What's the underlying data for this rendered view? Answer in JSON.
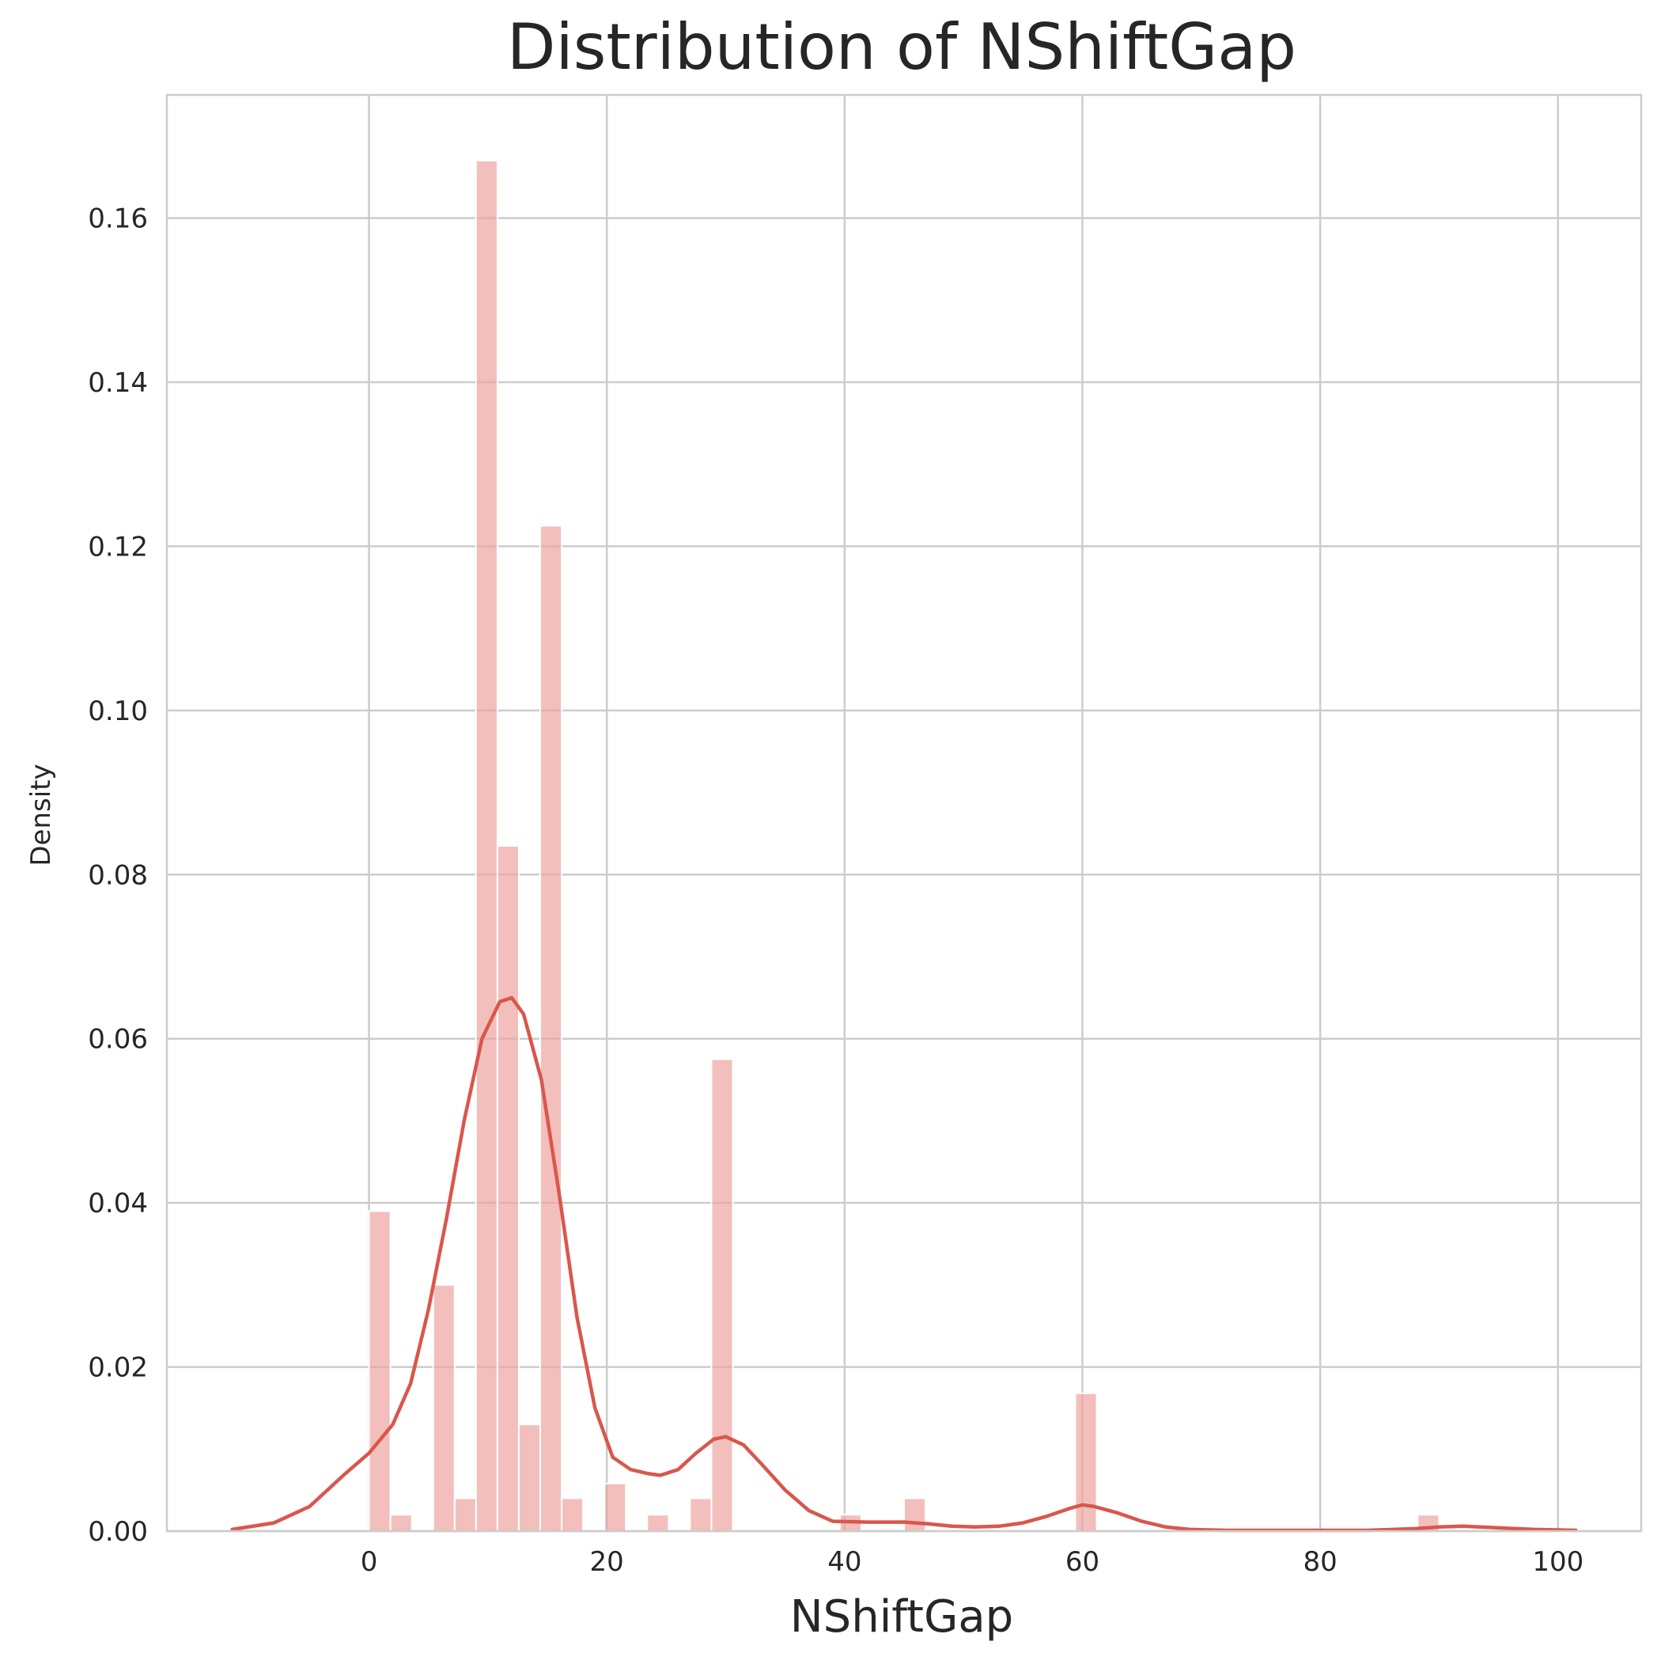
{
  "chart_data": {
    "type": "bar",
    "title": "Distribution of NShiftGap",
    "xlabel": "NShiftGap",
    "ylabel": "Density",
    "xlim": [
      -17,
      107
    ],
    "ylim": [
      0,
      0.175
    ],
    "xticks": [
      0,
      20,
      40,
      60,
      80,
      100
    ],
    "xtick_labels": [
      "0",
      "20",
      "40",
      "60",
      "80",
      "100"
    ],
    "yticks": [
      0.0,
      0.02,
      0.04,
      0.06,
      0.08,
      0.1,
      0.12,
      0.14,
      0.16
    ],
    "ytick_labels": [
      "0.00",
      "0.02",
      "0.04",
      "0.06",
      "0.08",
      "0.10",
      "0.12",
      "0.14",
      "0.16"
    ],
    "grid": true,
    "bin_width": 1.8,
    "histogram": {
      "name": "histogram",
      "bin_starts": [
        0,
        1.8,
        5.4,
        7.2,
        9.0,
        10.8,
        12.6,
        14.4,
        16.2,
        19.8,
        23.4,
        27.0,
        28.8,
        39.6,
        45.0,
        59.4,
        88.2
      ],
      "density": [
        0.039,
        0.002,
        0.03,
        0.004,
        0.167,
        0.0835,
        0.013,
        0.1225,
        0.004,
        0.0058,
        0.002,
        0.004,
        0.0575,
        0.002,
        0.004,
        0.0168,
        0.002
      ]
    },
    "kde": {
      "name": "kde",
      "x": [
        -11.5,
        -8,
        -5,
        -2,
        0,
        2,
        3.5,
        5,
        6.5,
        8,
        9.5,
        11,
        12,
        13,
        14.5,
        16,
        17.5,
        19,
        20.5,
        22,
        23.5,
        24.5,
        26,
        27.5,
        29,
        30,
        31.5,
        33,
        35,
        37,
        39,
        42,
        45,
        47,
        49,
        51,
        53,
        55,
        57,
        59,
        60,
        61,
        63,
        65,
        67,
        69,
        72,
        76,
        80,
        84,
        88,
        90,
        92,
        95,
        98,
        101.5
      ],
      "y": [
        0.0002,
        0.001,
        0.003,
        0.007,
        0.0095,
        0.013,
        0.018,
        0.027,
        0.038,
        0.05,
        0.06,
        0.0645,
        0.065,
        0.063,
        0.055,
        0.041,
        0.026,
        0.015,
        0.009,
        0.0075,
        0.007,
        0.0068,
        0.0075,
        0.0095,
        0.0112,
        0.0115,
        0.0105,
        0.0082,
        0.005,
        0.0025,
        0.0012,
        0.0011,
        0.0011,
        0.0009,
        0.0006,
        0.0005,
        0.0006,
        0.001,
        0.0018,
        0.0028,
        0.0032,
        0.003,
        0.0022,
        0.0012,
        0.0005,
        0.0002,
        0.0001,
        0.0001,
        0.0001,
        0.0001,
        0.0003,
        0.0005,
        0.0006,
        0.0004,
        0.0002,
        0.0001
      ]
    },
    "colors": {
      "bar_fill": "#eca4a0",
      "bar_opacity": 0.7,
      "kde_line": "#d9574c"
    }
  }
}
